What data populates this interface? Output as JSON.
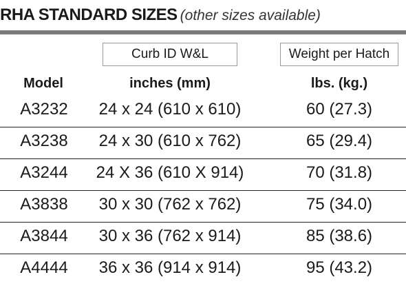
{
  "title": {
    "main": "RHA STANDARD SIZES",
    "sub": "(other sizes available)"
  },
  "boxes": {
    "curb": "Curb ID  W&L",
    "weight": "Weight per Hatch"
  },
  "headers": {
    "model": "Model",
    "curb": "inches (mm)",
    "weight": "lbs. (kg.)"
  },
  "rows": [
    {
      "model": "A3232",
      "curb": "24 x 24 (610 x 610)",
      "weight": "60 (27.3)"
    },
    {
      "model": "A3238",
      "curb": "24 x 30 (610 x 762)",
      "weight": "65 (29.4)"
    },
    {
      "model": "A3244",
      "curb": "24 X 36 (610 X 914)",
      "weight": "70 (31.8)"
    },
    {
      "model": "A3838",
      "curb": "30 x 30 (762 x 762)",
      "weight": "75 (34.0)"
    },
    {
      "model": "A3844",
      "curb": "30 x 36 (762 x 914)",
      "weight": "85 (38.6)"
    },
    {
      "model": "A4444",
      "curb": "36 x 36 (914 x 914)",
      "weight": "95 (43.2)"
    }
  ]
}
